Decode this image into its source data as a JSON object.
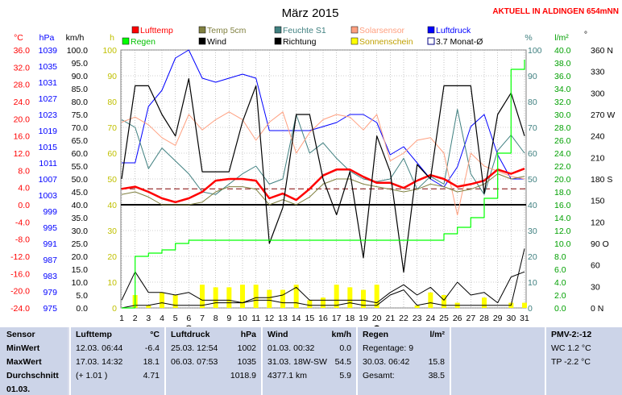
{
  "header": {
    "title": "März 2015",
    "station": "AKTUELL IN ALDINGEN 654mNN"
  },
  "legend": [
    {
      "label": "Lufttemp",
      "color": "#ff0000",
      "style": "box"
    },
    {
      "label": "Temp 5cm",
      "color": "#808040",
      "style": "box"
    },
    {
      "label": "Feuchte S1",
      "color": "#408080",
      "style": "box"
    },
    {
      "label": "Solarsensor",
      "color": "#ffa080",
      "style": "box"
    },
    {
      "label": "Luftdruck",
      "color": "#0000ff",
      "style": "box"
    },
    {
      "label": "Regen",
      "color": "#00ff00",
      "style": "box"
    },
    {
      "label": "Wind",
      "color": "#000000",
      "style": "box"
    },
    {
      "label": "Richtung",
      "color": "#000000",
      "style": "box"
    },
    {
      "label": "Sonnenschein",
      "color": "#ffff00",
      "style": "box"
    },
    {
      "label": "3.7 Monat-Ø",
      "color": "#000080",
      "style": "outline"
    }
  ],
  "axis_units": {
    "temp": "°C",
    "pressure": "hPa",
    "wind": "km/h",
    "sun": "h",
    "humidity": "%",
    "rain": "l/m²",
    "direction": "°"
  },
  "chart_data": {
    "type": "line",
    "x_label_days": [
      1,
      2,
      3,
      4,
      5,
      6,
      7,
      8,
      9,
      10,
      11,
      12,
      13,
      14,
      15,
      16,
      17,
      18,
      19,
      20,
      21,
      22,
      23,
      24,
      25,
      26,
      27,
      28,
      29,
      30,
      31
    ],
    "axes": {
      "temp": {
        "min": -24,
        "max": 36,
        "ticks": [
          "36.0",
          "32.0",
          "28.0",
          "24.0",
          "20.0",
          "16.0",
          "12.0",
          "8.0",
          "4.0",
          "0.0",
          "-4.0",
          "-8.0",
          "-12.0",
          "-16.0",
          "-20.0",
          "-24.0"
        ]
      },
      "pressure": {
        "min": 975,
        "max": 1039,
        "ticks": [
          "1039",
          "1035",
          "1031",
          "1027",
          "1023",
          "1019",
          "1015",
          "1011",
          "1007",
          "1003",
          "999",
          "995",
          "991",
          "987",
          "983",
          "979",
          "975"
        ]
      },
      "wind": {
        "min": 0,
        "max": 100,
        "ticks": [
          "100.0",
          "95.0",
          "90.0",
          "85.0",
          "80.0",
          "75.0",
          "70.0",
          "65.0",
          "60.0",
          "55.0",
          "50.0",
          "45.0",
          "40.0",
          "35.0",
          "30.0",
          "25.0",
          "20.0",
          "15.0",
          "10.0",
          "5.0",
          "0.0"
        ]
      },
      "sun": {
        "min": 0,
        "max": 100,
        "ticks": [
          "100",
          "90",
          "80",
          "70",
          "60",
          "50",
          "40",
          "30",
          "20",
          "10",
          "0"
        ]
      },
      "humidity": {
        "min": 0,
        "max": 100,
        "ticks": [
          "100",
          "90",
          "80",
          "70",
          "60",
          "50",
          "40",
          "30",
          "20",
          "10",
          "0"
        ]
      },
      "rain": {
        "min": 0,
        "max": 40,
        "ticks": [
          "40.0",
          "38.0",
          "36.0",
          "34.0",
          "32.0",
          "30.0",
          "28.0",
          "26.0",
          "24.0",
          "22.0",
          "20.0",
          "18.0",
          "16.0",
          "14.0",
          "12.0",
          "10.0",
          "8.0",
          "6.0",
          "4.0",
          "2.0",
          "0.0"
        ]
      },
      "direction": {
        "min": 0,
        "max": 360,
        "ticks": [
          "360 N",
          "330",
          "300",
          "270 W",
          "240",
          "210",
          "180 S",
          "150",
          "120",
          "90 O",
          "60",
          "30",
          "0  N"
        ]
      }
    },
    "reference_lines": [
      {
        "name": "monthly_mean",
        "axis": "temp",
        "value": 3.7,
        "color": "#800000",
        "dash": true
      },
      {
        "name": "zero",
        "axis": "temp",
        "value": 0.0,
        "color": "#000000",
        "dash": false
      }
    ],
    "series": [
      {
        "name": "Luftdruck",
        "axis": "pressure",
        "color": "#0000ff",
        "width": 1,
        "values": [
          1011,
          1011,
          1025,
          1029,
          1037,
          1039,
          1032,
          1031,
          1032,
          1033,
          1032,
          1019,
          1019,
          1019,
          1019,
          1020,
          1021,
          1023,
          1023,
          1021,
          1013,
          1015,
          1011,
          1007,
          1005,
          1010,
          1020,
          1023,
          1013,
          1007,
          1007
        ]
      },
      {
        "name": "Feuchte S1",
        "axis": "humidity",
        "color": "#408080",
        "width": 1,
        "values": [
          73,
          70,
          54,
          62,
          57,
          52,
          45,
          44,
          48,
          52,
          55,
          48,
          50,
          75,
          60,
          64,
          58,
          53,
          50,
          49,
          50,
          58,
          46,
          51,
          48,
          77,
          52,
          44,
          61,
          67,
          60
        ]
      },
      {
        "name": "Solarsensor",
        "axis": "wind",
        "color": "#ffa080",
        "width": 1,
        "values": [
          72,
          74,
          71,
          66,
          63,
          75,
          69,
          73,
          76,
          73,
          65,
          72,
          76,
          60,
          68,
          73,
          75,
          74,
          69,
          75,
          57,
          60,
          65,
          66,
          60,
          36,
          60,
          55,
          53,
          51,
          50
        ]
      },
      {
        "name": "Temp 5cm",
        "axis": "wind",
        "color": "#808040",
        "width": 1,
        "values": [
          44,
          45,
          43,
          40,
          40,
          40,
          41,
          45,
          47,
          47,
          46,
          40,
          42,
          40,
          43,
          48,
          50,
          50,
          48,
          47,
          46,
          45,
          46,
          48,
          47,
          45,
          46,
          48,
          52,
          50,
          51
        ]
      },
      {
        "name": "Lufttemp",
        "axis": "temp",
        "color": "#ff0000",
        "width": 2.5,
        "values": [
          3.7,
          4.2,
          3.0,
          1.5,
          0.6,
          1.5,
          3.0,
          5.6,
          6.0,
          6.0,
          5.6,
          1.5,
          2.6,
          1.1,
          3.7,
          6.8,
          8.2,
          8.2,
          6.5,
          5.1,
          5.1,
          3.9,
          5.6,
          6.9,
          6.0,
          4.2,
          4.8,
          5.6,
          8.2,
          7.2,
          8.4
        ]
      },
      {
        "name": "Wind",
        "axis": "wind",
        "color": "#000000",
        "width": 1,
        "values": [
          3,
          14,
          6,
          6,
          5,
          6,
          3,
          3,
          3,
          2,
          4,
          4,
          5,
          8,
          3,
          3,
          3,
          3,
          3,
          2,
          6,
          9,
          5,
          8,
          3,
          10,
          5,
          6,
          2,
          12,
          14
        ]
      },
      {
        "name": "Windspitze",
        "axis": "wind",
        "color": "#000000",
        "width": 1,
        "values": [
          0,
          1,
          1,
          2,
          1,
          1,
          1,
          2,
          2,
          2,
          3,
          3,
          2,
          2,
          1,
          1,
          1,
          2,
          1,
          1,
          5,
          7,
          1,
          2,
          1,
          1,
          1,
          1,
          1,
          1,
          23
        ]
      },
      {
        "name": "Richtung",
        "axis": "direction",
        "color": "#000000",
        "width": 1.2,
        "values": [
          180,
          310,
          310,
          270,
          240,
          320,
          190,
          190,
          190,
          260,
          310,
          90,
          140,
          270,
          270,
          180,
          130,
          190,
          70,
          240,
          190,
          50,
          200,
          180,
          310,
          310,
          310,
          160,
          270,
          300,
          240
        ]
      },
      {
        "name": "Regen",
        "axis": "rain",
        "color": "#00ff00",
        "width": 1.2,
        "step": true,
        "values": [
          0.0,
          8.0,
          8.5,
          9.0,
          10.0,
          10.5,
          10.5,
          10.5,
          10.5,
          10.5,
          10.5,
          10.5,
          10.5,
          10.5,
          10.5,
          10.5,
          10.5,
          10.5,
          10.5,
          10.5,
          10.5,
          10.5,
          10.5,
          10.5,
          11.5,
          12.5,
          14.0,
          17.0,
          24.0,
          37.0,
          38.5
        ]
      },
      {
        "name": "Sonnenschein",
        "axis": "sun",
        "color": "#ffff00",
        "type": "bar",
        "values": [
          0,
          5,
          1,
          6,
          5,
          0,
          9,
          8,
          8,
          9,
          9,
          7,
          7,
          9,
          3,
          4,
          9,
          8,
          7,
          9,
          0,
          0,
          1,
          6,
          5,
          2,
          0,
          4,
          0,
          2,
          2
        ]
      }
    ],
    "moon_markers": [
      {
        "day": 6,
        "phase": "full"
      },
      {
        "day": 20,
        "phase": "new"
      }
    ]
  },
  "summary": {
    "row_labels": [
      "Sensor",
      "MinWert",
      "MaxWert",
      "Durchschnitt",
      "01.03."
    ],
    "temp": {
      "title": "Lufttemp",
      "unit": "°C",
      "min_date": "12.03.  06:44",
      "min_val": "-6.4",
      "max_date": "17.03.  14:32",
      "max_val": "18.1",
      "avg_note": "(+ 1.01 )",
      "avg_val": "4.71"
    },
    "pressure": {
      "title": "Luftdruck",
      "unit": "hPa",
      "min_date": "25.03.  12:54",
      "min_val": "1002",
      "max_date": "06.03.  07:53",
      "max_val": "1035",
      "avg_val": "1018.9"
    },
    "wind": {
      "title": "Wind",
      "unit": "km/h",
      "min_date": "01.03.  00:32",
      "min_val": "0.0",
      "max_date": "31.03.  18W-SW",
      "max_val": "54.5",
      "avg_note": "4377.1 km",
      "avg_val": "5.9"
    },
    "rain": {
      "title": "Regen",
      "unit": "l/m²",
      "days": "Regentage: 9",
      "max_date": "30.03.  06:42",
      "max_val": "15.8",
      "total_label": "Gesamt:",
      "total_val": "38.5"
    },
    "pmv": {
      "title": "PMV-2:-12",
      "wc": "WC 1.2 °C",
      "tp": "TP -2.2 °C"
    }
  }
}
